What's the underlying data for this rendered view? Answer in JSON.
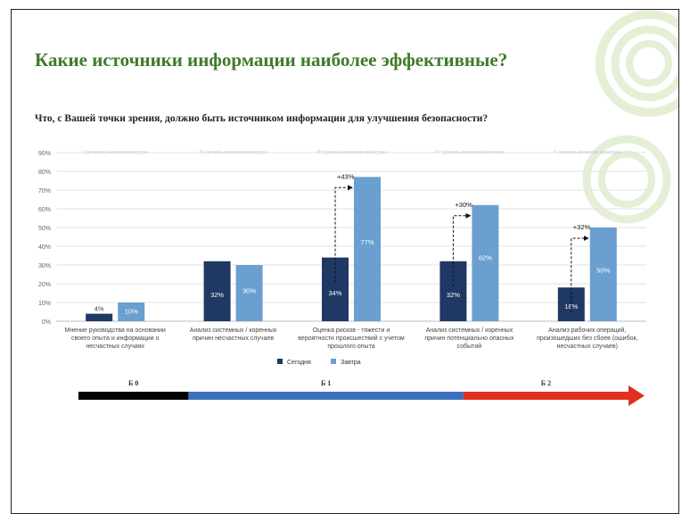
{
  "slide": {
    "title": "Какие источники информации наиболее эффективные?",
    "question": "Что, с Вашей точки зрения, должно быть источником информации для улучшения безопасности?"
  },
  "colors": {
    "title_green": "#3f7a2a",
    "today": "#1f3864",
    "tomorrow": "#6a9fd0",
    "band_b0": "#000000",
    "band_b1": "#3b6fbf",
    "band_b2": "#e0301e",
    "deco_green": "#e4efd6"
  },
  "chart_data": {
    "type": "bar",
    "ylim": [
      0,
      90
    ],
    "yticks": [
      "0%",
      "10%",
      "20%",
      "30%",
      "40%",
      "50%",
      "60%",
      "70%",
      "80%",
      "90%"
    ],
    "grid": true,
    "legend_position": "bottom",
    "groups": [
      "I уровень развития культуры",
      "II уровень развития культуры",
      "III уровень развития культуры",
      "IV уровень развития культуры",
      "V уровень развития культуры"
    ],
    "categories": [
      [
        "Мнение руководства на основании",
        "своего опыта и информации о",
        "несчастных случаях"
      ],
      [
        "Анализ системных / коренных",
        "причин несчастных случаев"
      ],
      [
        "Оценка рисков - тяжести и",
        "вероятности происшествий с учетом",
        "прошлого опыта"
      ],
      [
        "Анализ системных / коренных",
        "причин потенциально опасных",
        "событий"
      ],
      [
        "Анализ рабочих операций,",
        "произошедших без сбоев (ошибок,",
        "несчастных случаев)"
      ]
    ],
    "series": [
      {
        "name": "Сегодня",
        "values": [
          4,
          32,
          34,
          32,
          18
        ],
        "labels": [
          "4%",
          "32%",
          "34%",
          "32%",
          "18%"
        ]
      },
      {
        "name": "Завтра",
        "values": [
          10,
          30,
          77,
          62,
          50
        ],
        "labels": [
          "10%",
          "30%",
          "77%",
          "62%",
          "50%"
        ]
      }
    ],
    "annotations": [
      {
        "group": 2,
        "text": "+43%"
      },
      {
        "group": 3,
        "text": "+30%"
      },
      {
        "group": 4,
        "text": "+32%"
      }
    ]
  },
  "bands": [
    {
      "label": "Б 0",
      "start": 0,
      "end": 1
    },
    {
      "label": "Б 1",
      "start": 1,
      "end": 3.5
    },
    {
      "label": "Б 2",
      "start": 3.5,
      "end": 5
    }
  ]
}
